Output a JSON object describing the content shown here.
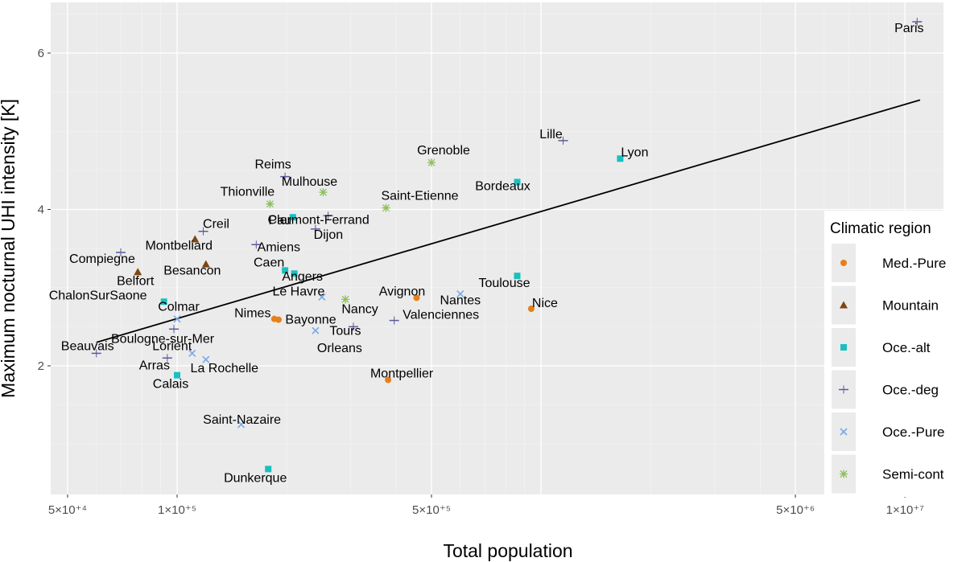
{
  "chart_data": {
    "type": "scatter",
    "x_scale": "log10",
    "xlim": [
      50000,
      12000000
    ],
    "ylim": [
      0.4,
      6.65
    ],
    "xlabel": "Total population",
    "ylabel": "Maximum nocturnal UHI intensity [K]",
    "x_ticks": [
      {
        "value": 50000,
        "label": "5×10⁺⁴"
      },
      {
        "value": 100000,
        "label": "1×10⁺⁵"
      },
      {
        "value": 500000,
        "label": "5×10⁺⁵"
      },
      {
        "value": 5000000,
        "label": "5×10⁺⁶"
      },
      {
        "value": 10000000,
        "label": "1×10⁺⁷"
      }
    ],
    "y_ticks": [
      {
        "value": 2,
        "label": "2"
      },
      {
        "value": 4,
        "label": "4"
      },
      {
        "value": 6,
        "label": "6"
      }
    ],
    "grid": true,
    "legend": {
      "title": "Climatic region",
      "placement": "right",
      "entries": [
        {
          "name": "Med.-Pure",
          "color": "#e6801a",
          "shape": "circle"
        },
        {
          "name": "Mountain",
          "color": "#7f4510",
          "shape": "triangle"
        },
        {
          "name": "Oce.-alt",
          "color": "#1bbfbf",
          "shape": "square"
        },
        {
          "name": "Oce.-deg",
          "color": "#5a5a9c",
          "shape": "dash"
        },
        {
          "name": "Oce.-Pure",
          "color": "#78a8e8",
          "shape": "x"
        },
        {
          "name": "Semi-cont",
          "color": "#8cbf5a",
          "shape": "asterisk"
        }
      ]
    },
    "trend_line": {
      "x": [
        60000,
        11000000
      ],
      "y": [
        2.3,
        5.4
      ],
      "color": "#000000"
    },
    "points": [
      {
        "city": "Paris",
        "x": 10800000,
        "y": 6.4,
        "region": "Oce.-deg"
      },
      {
        "city": "Lyon",
        "x": 1650000,
        "y": 4.65,
        "region": "Oce.-alt"
      },
      {
        "city": "Lille",
        "x": 1150000,
        "y": 4.88,
        "region": "Oce.-deg"
      },
      {
        "city": "Bordeaux",
        "x": 860000,
        "y": 4.35,
        "region": "Oce.-alt"
      },
      {
        "city": "Grenoble",
        "x": 500000,
        "y": 4.6,
        "region": "Semi-cont"
      },
      {
        "city": "Saint-Etienne",
        "x": 375000,
        "y": 4.02,
        "region": "Semi-cont"
      },
      {
        "city": "Reims",
        "x": 198000,
        "y": 4.42,
        "region": "Oce.-deg"
      },
      {
        "city": "Mulhouse",
        "x": 252000,
        "y": 4.22,
        "region": "Semi-cont"
      },
      {
        "city": "Thionville",
        "x": 180000,
        "y": 4.07,
        "region": "Semi-cont"
      },
      {
        "city": "Clermont-Ferrand",
        "x": 260000,
        "y": 3.92,
        "region": "Oce.-deg"
      },
      {
        "city": "Pau",
        "x": 208000,
        "y": 3.9,
        "region": "Oce.-alt"
      },
      {
        "city": "Dijon",
        "x": 240000,
        "y": 3.75,
        "region": "Oce.-deg"
      },
      {
        "city": "Creil",
        "x": 118000,
        "y": 3.72,
        "region": "Oce.-deg"
      },
      {
        "city": "Montbeliard",
        "x": 112000,
        "y": 3.62,
        "region": "Mountain"
      },
      {
        "city": "Amiens",
        "x": 165000,
        "y": 3.55,
        "region": "Oce.-deg"
      },
      {
        "city": "Compiegne",
        "x": 70000,
        "y": 3.45,
        "region": "Oce.-deg"
      },
      {
        "city": "Besancon",
        "x": 120000,
        "y": 3.3,
        "region": "Mountain"
      },
      {
        "city": "Caen",
        "x": 198000,
        "y": 3.22,
        "region": "Oce.-alt"
      },
      {
        "city": "Angers",
        "x": 210000,
        "y": 3.18,
        "region": "Oce.-alt"
      },
      {
        "city": "Belfort",
        "x": 78000,
        "y": 3.2,
        "region": "Mountain"
      },
      {
        "city": "Toulouse",
        "x": 860000,
        "y": 3.15,
        "region": "Oce.-alt"
      },
      {
        "city": "Le Havre",
        "x": 250000,
        "y": 2.88,
        "region": "Oce.-Pure"
      },
      {
        "city": "Nancy",
        "x": 290000,
        "y": 2.85,
        "region": "Semi-cont"
      },
      {
        "city": "Avignon",
        "x": 455000,
        "y": 2.87,
        "region": "Med.-Pure"
      },
      {
        "city": "Nantes",
        "x": 600000,
        "y": 2.92,
        "region": "Oce.-Pure"
      },
      {
        "city": "ChalonSurSaone",
        "x": 92000,
        "y": 2.82,
        "region": "Oce.-alt"
      },
      {
        "city": "Nice",
        "x": 940000,
        "y": 2.73,
        "region": "Med.-Pure"
      },
      {
        "city": "Colmar",
        "x": 100000,
        "y": 2.6,
        "region": "Oce.-Pure"
      },
      {
        "city": "Nimes",
        "x": 185000,
        "y": 2.6,
        "region": "Med.-Pure"
      },
      {
        "city": "Bayonne",
        "x": 190000,
        "y": 2.59,
        "region": "Med.-Pure"
      },
      {
        "city": "Valenciennes",
        "x": 395000,
        "y": 2.58,
        "region": "Oce.-deg"
      },
      {
        "city": "Boulogne-sur-Mer",
        "x": 98000,
        "y": 2.47,
        "region": "Oce.-deg"
      },
      {
        "city": "Tours",
        "x": 305000,
        "y": 2.5,
        "region": "Oce.-deg"
      },
      {
        "city": "Orleans",
        "x": 240000,
        "y": 2.45,
        "region": "Oce.-Pure"
      },
      {
        "city": "Beauvais",
        "x": 60000,
        "y": 2.16,
        "region": "Oce.-deg"
      },
      {
        "city": "Lorient",
        "x": 110000,
        "y": 2.16,
        "region": "Oce.-Pure"
      },
      {
        "city": "Arras",
        "x": 94000,
        "y": 2.1,
        "region": "Oce.-deg"
      },
      {
        "city": "La Rochelle",
        "x": 120000,
        "y": 2.08,
        "region": "Oce.-Pure"
      },
      {
        "city": "Calais",
        "x": 100000,
        "y": 1.88,
        "region": "Oce.-alt"
      },
      {
        "city": "Montpellier",
        "x": 380000,
        "y": 1.82,
        "region": "Med.-Pure"
      },
      {
        "city": "Saint-Nazaire",
        "x": 150000,
        "y": 1.25,
        "region": "Oce.-Pure"
      },
      {
        "city": "Dunkerque",
        "x": 178000,
        "y": 0.68,
        "region": "Oce.-alt"
      }
    ]
  }
}
